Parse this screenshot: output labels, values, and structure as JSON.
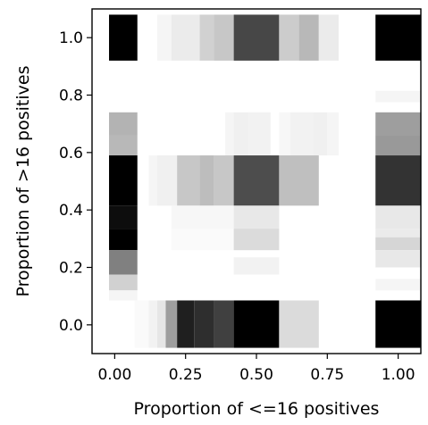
{
  "chart_data": {
    "type": "heatmap",
    "title": "",
    "xlabel": "Proportion of <=16 positives",
    "ylabel": "Proportion of >16 positives",
    "xlim": [
      -0.08,
      1.08
    ],
    "ylim": [
      -0.1,
      1.1
    ],
    "xticks": [
      0.0,
      0.25,
      0.5,
      0.75,
      1.0
    ],
    "xtick_labels": [
      "0.00",
      "0.25",
      "0.50",
      "0.75",
      "1.00"
    ],
    "yticks": [
      0.0,
      0.2,
      0.4,
      0.6,
      0.8,
      1.0
    ],
    "ytick_labels": [
      "0.0",
      "0.2",
      "0.4",
      "0.6",
      "0.8",
      "1.0"
    ],
    "colormap": "greys (white = low, black = high)",
    "grid": false,
    "cells": [
      {
        "x": [
          -0.02,
          0.08
        ],
        "y": [
          0.92,
          1.08
        ],
        "v": 1.0
      },
      {
        "x": [
          0.15,
          0.2
        ],
        "y": [
          0.92,
          1.08
        ],
        "v": 0.04
      },
      {
        "x": [
          0.2,
          0.3
        ],
        "y": [
          0.92,
          1.08
        ],
        "v": 0.08
      },
      {
        "x": [
          0.3,
          0.35
        ],
        "y": [
          0.92,
          1.08
        ],
        "v": 0.18
      },
      {
        "x": [
          0.35,
          0.42
        ],
        "y": [
          0.92,
          1.08
        ],
        "v": 0.22
      },
      {
        "x": [
          0.42,
          0.58
        ],
        "y": [
          0.92,
          1.08
        ],
        "v": 0.72
      },
      {
        "x": [
          0.58,
          0.65
        ],
        "y": [
          0.92,
          1.08
        ],
        "v": 0.2
      },
      {
        "x": [
          0.65,
          0.72
        ],
        "y": [
          0.92,
          1.08
        ],
        "v": 0.28
      },
      {
        "x": [
          0.72,
          0.79
        ],
        "y": [
          0.92,
          1.08
        ],
        "v": 0.08
      },
      {
        "x": [
          0.92,
          1.08
        ],
        "y": [
          0.92,
          1.08
        ],
        "v": 1.0
      },
      {
        "x": [
          0.92,
          1.08
        ],
        "y": [
          0.775,
          0.815
        ],
        "v": 0.04
      },
      {
        "x": [
          -0.02,
          0.08
        ],
        "y": [
          0.66,
          0.74
        ],
        "v": 0.3
      },
      {
        "x": [
          -0.02,
          0.08
        ],
        "y": [
          0.59,
          0.66
        ],
        "v": 0.28
      },
      {
        "x": [
          0.39,
          0.42
        ],
        "y": [
          0.59,
          0.74
        ],
        "v": 0.04
      },
      {
        "x": [
          0.42,
          0.47
        ],
        "y": [
          0.59,
          0.74
        ],
        "v": 0.06
      },
      {
        "x": [
          0.47,
          0.55
        ],
        "y": [
          0.59,
          0.74
        ],
        "v": 0.05
      },
      {
        "x": [
          0.58,
          0.62
        ],
        "y": [
          0.59,
          0.74
        ],
        "v": 0.03
      },
      {
        "x": [
          0.62,
          0.7
        ],
        "y": [
          0.59,
          0.74
        ],
        "v": 0.05
      },
      {
        "x": [
          0.7,
          0.75
        ],
        "y": [
          0.59,
          0.74
        ],
        "v": 0.06
      },
      {
        "x": [
          0.75,
          0.79
        ],
        "y": [
          0.59,
          0.74
        ],
        "v": 0.04
      },
      {
        "x": [
          0.92,
          1.08
        ],
        "y": [
          0.66,
          0.74
        ],
        "v": 0.38
      },
      {
        "x": [
          0.92,
          1.08
        ],
        "y": [
          0.59,
          0.66
        ],
        "v": 0.4
      },
      {
        "x": [
          -0.02,
          0.08
        ],
        "y": [
          0.415,
          0.59
        ],
        "v": 1.0
      },
      {
        "x": [
          0.12,
          0.15
        ],
        "y": [
          0.415,
          0.59
        ],
        "v": 0.04
      },
      {
        "x": [
          0.15,
          0.22
        ],
        "y": [
          0.415,
          0.59
        ],
        "v": 0.06
      },
      {
        "x": [
          0.22,
          0.3
        ],
        "y": [
          0.415,
          0.59
        ],
        "v": 0.22
      },
      {
        "x": [
          0.3,
          0.35
        ],
        "y": [
          0.415,
          0.59
        ],
        "v": 0.26
      },
      {
        "x": [
          0.35,
          0.42
        ],
        "y": [
          0.415,
          0.59
        ],
        "v": 0.22
      },
      {
        "x": [
          0.42,
          0.58
        ],
        "y": [
          0.415,
          0.59
        ],
        "v": 0.7
      },
      {
        "x": [
          0.58,
          0.72
        ],
        "y": [
          0.415,
          0.59
        ],
        "v": 0.25
      },
      {
        "x": [
          0.92,
          1.08
        ],
        "y": [
          0.415,
          0.59
        ],
        "v": 0.8
      },
      {
        "x": [
          -0.02,
          0.08
        ],
        "y": [
          0.335,
          0.415
        ],
        "v": 0.95
      },
      {
        "x": [
          0.2,
          0.42
        ],
        "y": [
          0.335,
          0.415
        ],
        "v": 0.03
      },
      {
        "x": [
          0.42,
          0.58
        ],
        "y": [
          0.335,
          0.415
        ],
        "v": 0.09
      },
      {
        "x": [
          0.92,
          1.08
        ],
        "y": [
          0.335,
          0.415
        ],
        "v": 0.09
      },
      {
        "x": [
          -0.02,
          0.08
        ],
        "y": [
          0.26,
          0.335
        ],
        "v": 1.0
      },
      {
        "x": [
          0.2,
          0.42
        ],
        "y": [
          0.26,
          0.335
        ],
        "v": 0.02
      },
      {
        "x": [
          0.42,
          0.58
        ],
        "y": [
          0.26,
          0.335
        ],
        "v": 0.14
      },
      {
        "x": [
          0.92,
          1.08
        ],
        "y": [
          0.305,
          0.335
        ],
        "v": 0.08
      },
      {
        "x": [
          0.92,
          1.08
        ],
        "y": [
          0.26,
          0.305
        ],
        "v": 0.16
      },
      {
        "x": [
          -0.02,
          0.08
        ],
        "y": [
          0.175,
          0.26
        ],
        "v": 0.5
      },
      {
        "x": [
          0.42,
          0.58
        ],
        "y": [
          0.175,
          0.235
        ],
        "v": 0.05
      },
      {
        "x": [
          0.92,
          1.08
        ],
        "y": [
          0.2,
          0.26
        ],
        "v": 0.09
      },
      {
        "x": [
          -0.02,
          0.08
        ],
        "y": [
          0.12,
          0.175
        ],
        "v": 0.18
      },
      {
        "x": [
          0.92,
          1.08
        ],
        "y": [
          0.12,
          0.16
        ],
        "v": 0.04
      },
      {
        "x": [
          -0.02,
          0.08
        ],
        "y": [
          0.085,
          0.12
        ],
        "v": 0.04
      },
      {
        "x": [
          0.07,
          0.12
        ],
        "y": [
          -0.08,
          0.085
        ],
        "v": 0.02
      },
      {
        "x": [
          0.12,
          0.15
        ],
        "y": [
          -0.08,
          0.085
        ],
        "v": 0.05
      },
      {
        "x": [
          0.15,
          0.18
        ],
        "y": [
          -0.08,
          0.085
        ],
        "v": 0.1
      },
      {
        "x": [
          0.18,
          0.22
        ],
        "y": [
          -0.08,
          0.085
        ],
        "v": 0.38
      },
      {
        "x": [
          0.22,
          0.28
        ],
        "y": [
          -0.08,
          0.085
        ],
        "v": 0.88
      },
      {
        "x": [
          0.28,
          0.35
        ],
        "y": [
          -0.08,
          0.085
        ],
        "v": 0.82
      },
      {
        "x": [
          0.35,
          0.42
        ],
        "y": [
          -0.08,
          0.085
        ],
        "v": 0.75
      },
      {
        "x": [
          0.42,
          0.58
        ],
        "y": [
          -0.08,
          0.085
        ],
        "v": 1.0
      },
      {
        "x": [
          0.58,
          0.72
        ],
        "y": [
          -0.08,
          0.085
        ],
        "v": 0.14
      },
      {
        "x": [
          0.92,
          1.08
        ],
        "y": [
          -0.08,
          0.085
        ],
        "v": 1.0
      }
    ]
  }
}
